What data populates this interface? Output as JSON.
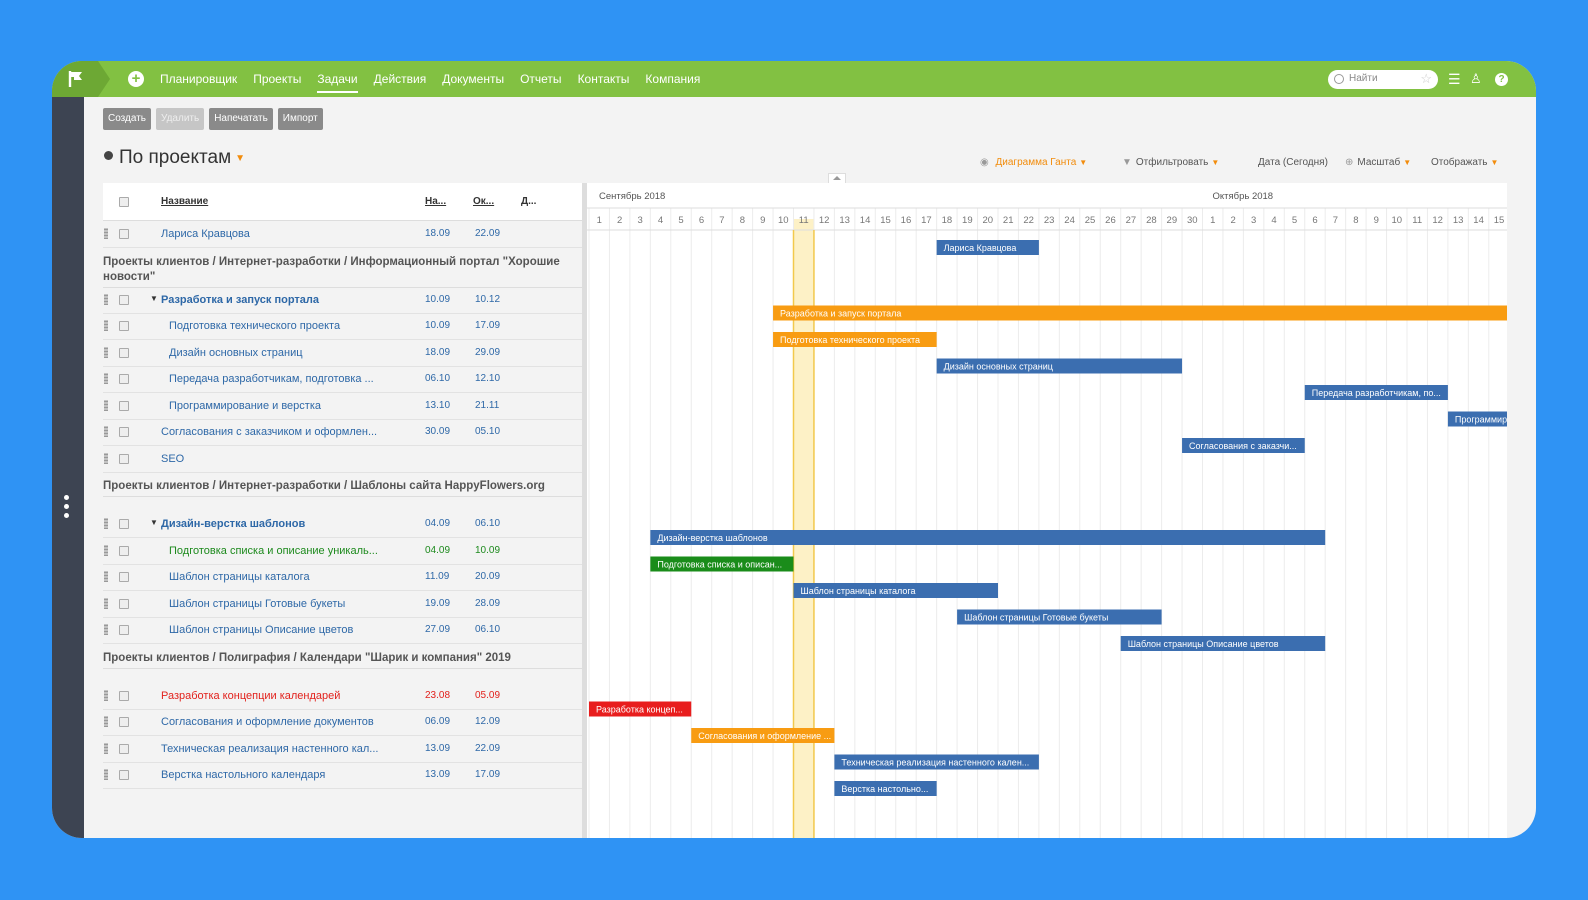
{
  "nav": {
    "items": [
      "Планировщик",
      "Проекты",
      "Задачи",
      "Действия",
      "Документы",
      "Отчеты",
      "Контакты",
      "Компания"
    ],
    "active": "Задачи",
    "search_placeholder": "Найти"
  },
  "toolbar": {
    "create": "Создать",
    "delete": "Удалить",
    "print": "Напечатать",
    "import": "Импорт"
  },
  "view": {
    "title": "По проектам"
  },
  "gantt_toolbar": {
    "mode": "Диаграмма Ганта",
    "filter": "Отфильтровать",
    "date": "Дата (Сегодня)",
    "scale": "Масштаб",
    "display": "Отображать"
  },
  "grid": {
    "columns": {
      "name": "Название",
      "start": "На...",
      "end": "Ок...",
      "duration": "Д..."
    }
  },
  "timeline": {
    "months": [
      {
        "label": "Сентябрь 2018",
        "days": 30
      },
      {
        "label": "Октябрь 2018",
        "days": 15
      }
    ],
    "today_day": 11
  },
  "tasks": [
    {
      "name": "Лариса Кравцова",
      "start": "18.09",
      "end": "22.09",
      "level": 0,
      "status": "normal"
    },
    {
      "group": "Проекты клиентов / Интернет-разработки / Информационный портал \"Хорошие новости\""
    },
    {
      "name": "Разработка и запуск портала",
      "start": "10.09",
      "end": "10.12",
      "level": 1,
      "status": "normal",
      "parent": true
    },
    {
      "name": "Подготовка технического проекта",
      "start": "10.09",
      "end": "17.09",
      "level": 2,
      "status": "normal"
    },
    {
      "name": "Дизайн основных страниц",
      "start": "18.09",
      "end": "29.09",
      "level": 2,
      "status": "normal"
    },
    {
      "name": "Передача разработчикам, подготовка ...",
      "start": "06.10",
      "end": "12.10",
      "level": 2,
      "status": "normal"
    },
    {
      "name": "Программирование и верстка",
      "start": "13.10",
      "end": "21.11",
      "level": 2,
      "status": "normal"
    },
    {
      "name": "Согласования с заказчиком и оформлен...",
      "start": "30.09",
      "end": "05.10",
      "level": 0,
      "status": "normal"
    },
    {
      "name": "SEO",
      "start": "",
      "end": "",
      "level": 0,
      "status": "normal"
    },
    {
      "group": "Проекты клиентов / Интернет-разработки / Шаблоны сайта HappyFlowers.org"
    },
    {
      "name": "Дизайн-верстка шаблонов",
      "start": "04.09",
      "end": "06.10",
      "level": 1,
      "status": "normal",
      "parent": true
    },
    {
      "name": "Подготовка списка и описание уникаль...",
      "start": "04.09",
      "end": "10.09",
      "level": 2,
      "status": "done"
    },
    {
      "name": "Шаблон страницы каталога",
      "start": "11.09",
      "end": "20.09",
      "level": 2,
      "status": "normal"
    },
    {
      "name": "Шаблон страницы Готовые букеты",
      "start": "19.09",
      "end": "28.09",
      "level": 2,
      "status": "normal"
    },
    {
      "name": "Шаблон страницы Описание цветов",
      "start": "27.09",
      "end": "06.10",
      "level": 2,
      "status": "normal"
    },
    {
      "group": "Проекты клиентов / Полиграфия / Календари \"Шарик и компания\" 2019"
    },
    {
      "name": "Разработка концепции календарей",
      "start": "23.08",
      "end": "05.09",
      "level": 0,
      "status": "overdue"
    },
    {
      "name": "Согласования и оформление документов",
      "start": "06.09",
      "end": "12.09",
      "level": 0,
      "status": "normal"
    },
    {
      "name": "Техническая реализация настенного кал...",
      "start": "13.09",
      "end": "22.09",
      "level": 0,
      "status": "normal"
    },
    {
      "name": "Верстка настольного календаря",
      "start": "13.09",
      "end": "17.09",
      "level": 0,
      "status": "normal"
    }
  ],
  "bars": [
    {
      "label": "Лариса Кравцова",
      "from": 18,
      "to": 22,
      "color": "blue",
      "row": 0
    },
    {
      "label": "Разработка и запуск портала",
      "from": 10,
      "to": 46,
      "color": "orange",
      "row": 2
    },
    {
      "label": "Подготовка технического проекта",
      "from": 10,
      "to": 17,
      "color": "orange",
      "row": 3
    },
    {
      "label": "Дизайн основных страниц",
      "from": 18,
      "to": 29,
      "color": "blue",
      "row": 4
    },
    {
      "label": "Передача разработчикам, по...",
      "from": 36,
      "to": 42,
      "color": "blue",
      "row": 5
    },
    {
      "label": "Программир",
      "from": 43,
      "to": 46,
      "color": "blue",
      "row": 6
    },
    {
      "label": "Согласования с заказчи...",
      "from": 30,
      "to": 35,
      "color": "blue",
      "row": 7
    },
    {
      "label": "Дизайн-верстка шаблонов",
      "from": 4,
      "to": 36,
      "color": "blue",
      "row": 10
    },
    {
      "label": "Подготовка списка и описан...",
      "from": 4,
      "to": 10,
      "color": "green",
      "row": 11
    },
    {
      "label": "Шаблон страницы каталога",
      "from": 11,
      "to": 20,
      "color": "blue",
      "row": 12
    },
    {
      "label": "Шаблон страницы Готовые букеты",
      "from": 19,
      "to": 28,
      "color": "blue",
      "row": 13
    },
    {
      "label": "Шаблон страницы Описание цветов",
      "from": 27,
      "to": 36,
      "color": "blue",
      "row": 14
    },
    {
      "label": "Разработка концеп...",
      "from": 0,
      "to": 5,
      "color": "red",
      "row": 16
    },
    {
      "label": "Согласования и оформление ...",
      "from": 6,
      "to": 12,
      "color": "orange",
      "row": 17
    },
    {
      "label": "Техническая реализация настенного кален...",
      "from": 13,
      "to": 22,
      "color": "blue",
      "row": 18
    },
    {
      "label": "Верстка настольно...",
      "from": 13,
      "to": 17,
      "color": "blue",
      "row": 19
    }
  ],
  "colors": {
    "topbar": "#82c142",
    "blue": "#3b6eb0",
    "orange": "#f89c12",
    "green": "#1a8c1a",
    "red": "#e81d1d",
    "today": "#fdf1c6"
  }
}
